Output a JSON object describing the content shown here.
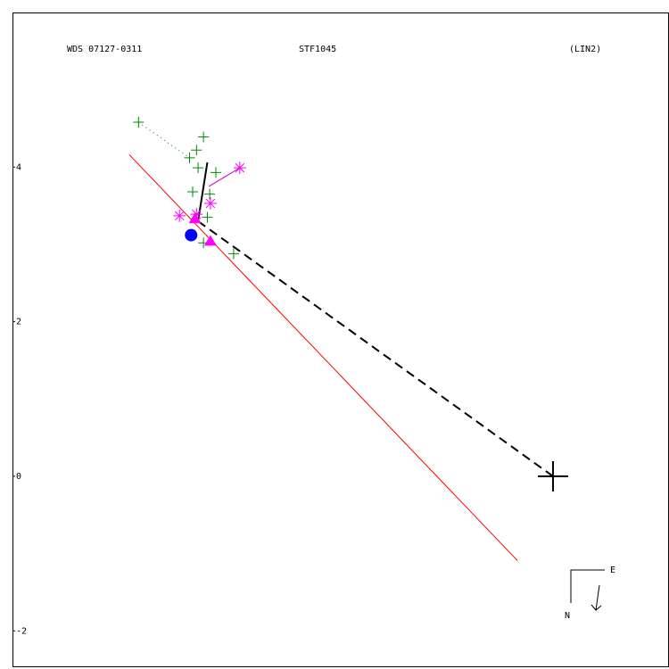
{
  "chart_data": {
    "type": "scatter",
    "title": "WDS 07127-0311",
    "subtitle": "STF1045",
    "note": "(LIN2)",
    "compass": {
      "east": "E",
      "north": "N"
    },
    "xlim": [
      -6.99,
      1.5
    ],
    "ylim": [
      -2.47,
      6
    ],
    "yticks": [
      4,
      2,
      0,
      -2
    ],
    "lines": [
      {
        "color": "#ff0000",
        "style": "solid",
        "width": 1,
        "x": [
          -5.48,
          -0.46
        ],
        "y": [
          4.16,
          -1.09
        ]
      },
      {
        "color": "#000000",
        "style": "dashed",
        "width": 2,
        "x": [
          -4.59,
          0
        ],
        "y": [
          3.3,
          0
        ]
      },
      {
        "color": "#000000",
        "style": "solid",
        "width": 2,
        "x": [
          -4.47,
          -4.59
        ],
        "y": [
          4.06,
          3.3
        ]
      },
      {
        "color": "#008800",
        "style": "dotted",
        "width": 1,
        "x": [
          -5.36,
          -4.7
        ],
        "y": [
          4.58,
          4.12
        ]
      },
      {
        "color": "#cc00cc",
        "style": "solid",
        "width": 1,
        "x": [
          -4.05,
          -4.45
        ],
        "y": [
          3.99,
          3.75
        ]
      }
    ],
    "series": [
      {
        "marker": "plus",
        "size": 6,
        "color": "#008800",
        "x": [
          -5.36,
          -4.7,
          -4.61,
          -4.52,
          -4.36,
          -4.66,
          -4.44,
          -4.47,
          -4.13,
          -4.52,
          -4.59
        ],
        "y": [
          4.58,
          4.12,
          4.22,
          4.39,
          3.93,
          3.68,
          3.65,
          3.35,
          2.88,
          3.02,
          3.99
        ]
      },
      {
        "marker": "asterisk",
        "size": 7,
        "color": "#ff00ff",
        "x": [
          -4.05,
          -4.83,
          -4.43,
          -4.61
        ],
        "y": [
          3.99,
          3.37,
          3.53,
          3.39
        ]
      },
      {
        "marker": "triangle",
        "size": 7,
        "color": "#ff00ff",
        "x": [
          -4.43,
          -4.63
        ],
        "y": [
          3.04,
          3.33
        ]
      },
      {
        "marker": "circle",
        "size": 7,
        "color": "#0000ff",
        "x": [
          -4.68
        ],
        "y": [
          3.12
        ]
      },
      {
        "marker": "plus",
        "size": 17,
        "color": "#000000",
        "x": [
          0
        ],
        "y": [
          0
        ]
      }
    ]
  }
}
